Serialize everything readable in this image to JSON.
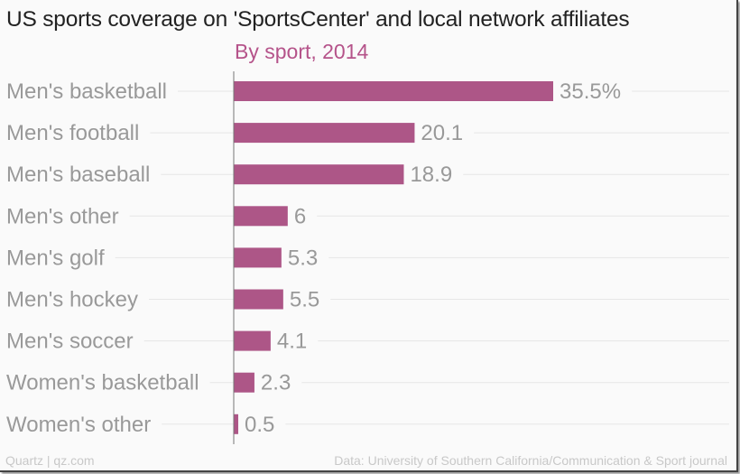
{
  "chart_data": {
    "type": "bar",
    "orientation": "horizontal",
    "title": "US sports coverage on 'SportsCenter' and local network affiliates",
    "subtitle": "By sport, 2014",
    "categories": [
      "Men's basketball",
      "Men's football",
      "Men's baseball",
      "Men's other",
      "Men's golf",
      "Men's hockey",
      "Men's soccer",
      "Women's basketball",
      "Women's other"
    ],
    "values": [
      35.5,
      20.1,
      18.9,
      6,
      5.3,
      5.5,
      4.1,
      2.3,
      0.5
    ],
    "data_labels": [
      "35.5%",
      "20.1",
      "18.9",
      "6",
      "5.3",
      "5.5",
      "4.1",
      "2.3",
      "0.5"
    ],
    "unit": "%",
    "xlim": [
      0,
      55
    ],
    "grid": true,
    "bar_color": "#ad5687",
    "subtitle_color": "#b5538a"
  },
  "footer": {
    "source_left": "Quartz | qz.com",
    "source_right": "Data: University of Southern California/Communication & Sport journal"
  }
}
